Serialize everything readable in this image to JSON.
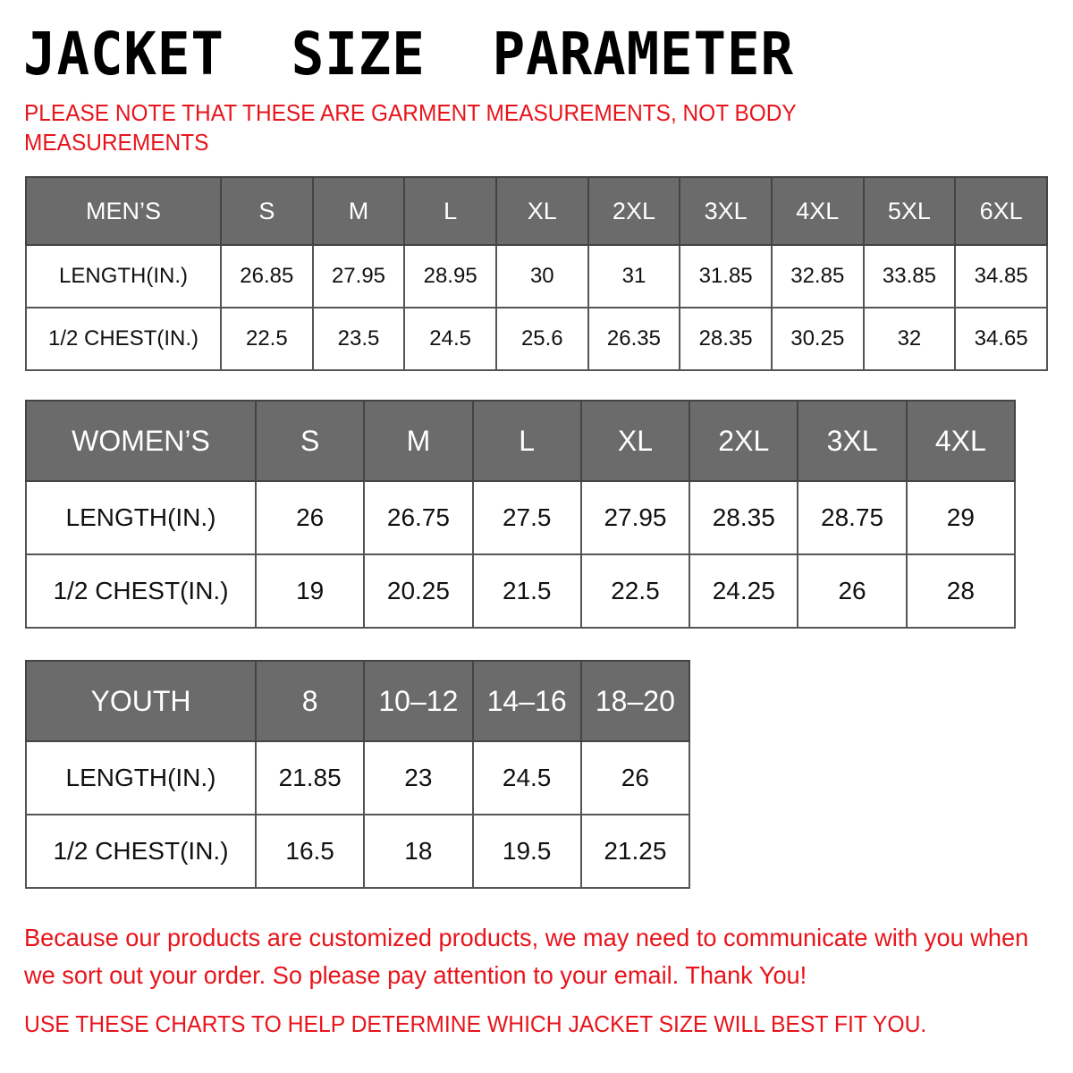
{
  "title": "JACKET  SIZE  PARAMETER",
  "note": "PLEASE NOTE THAT THESE ARE GARMENT MEASUREMENTS, NOT BODY MEASUREMENTS",
  "tables": [
    {
      "id": "men",
      "header": [
        "MEN’S",
        "S",
        "M",
        "L",
        "XL",
        "2XL",
        "3XL",
        "4XL",
        "5XL",
        "6XL"
      ],
      "rows": [
        [
          "LENGTH(IN.)",
          "26.85",
          "27.95",
          "28.95",
          "30",
          "31",
          "31.85",
          "32.85",
          "33.85",
          "34.85"
        ],
        [
          "1/2 CHEST(IN.)",
          "22.5",
          "23.5",
          "24.5",
          "25.6",
          "26.35",
          "28.35",
          "30.25",
          "32",
          "34.65"
        ]
      ]
    },
    {
      "id": "women",
      "header": [
        "WOMEN’S",
        "S",
        "M",
        "L",
        "XL",
        "2XL",
        "3XL",
        "4XL"
      ],
      "rows": [
        [
          "LENGTH(IN.)",
          "26",
          "26.75",
          "27.5",
          "27.95",
          "28.35",
          "28.75",
          "29"
        ],
        [
          "1/2 CHEST(IN.)",
          "19",
          "20.25",
          "21.5",
          "22.5",
          "24.25",
          "26",
          "28"
        ]
      ]
    },
    {
      "id": "youth",
      "header": [
        "YOUTH",
        "8",
        "10–12",
        "14–16",
        "18–20"
      ],
      "rows": [
        [
          "LENGTH(IN.)",
          "21.85",
          "23",
          "24.5",
          "26"
        ],
        [
          "1/2 CHEST(IN.)",
          "16.5",
          "18",
          "19.5",
          "21.25"
        ]
      ]
    }
  ],
  "footer": {
    "message": "Because our products are customized products, we may need to communicate with you when we sort out your order. So please pay attention to your email. Thank You!",
    "instruction": "USE THESE CHARTS TO HELP DETERMINE WHICH JACKET SIZE WILL BEST FIT YOU."
  },
  "colors": {
    "header_bg": "#6b6b6b",
    "accent_red": "#e8141b"
  }
}
